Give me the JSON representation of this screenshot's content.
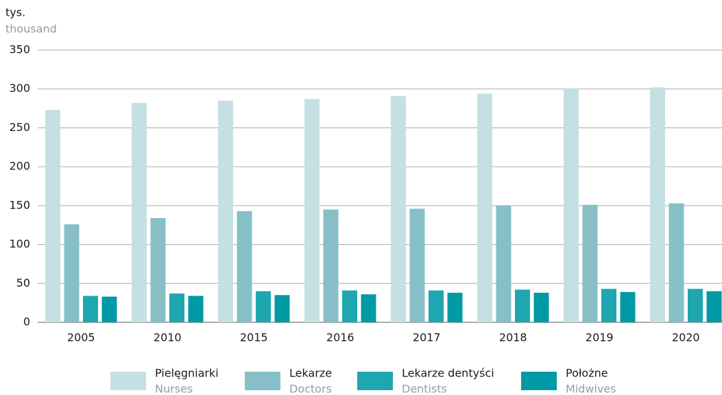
{
  "chart_data": {
    "type": "bar",
    "y_label": "tys.",
    "y_label_en": "thousand",
    "categories": [
      "2005",
      "2010",
      "2015",
      "2016",
      "2017",
      "2018",
      "2019",
      "2020"
    ],
    "series": [
      {
        "name": "Pielęgniarki",
        "name_en": "Nurses",
        "color": "#c5e0e3",
        "values": [
          273,
          282,
          285,
          287,
          291,
          294,
          300,
          302
        ]
      },
      {
        "name": "Lekarze",
        "name_en": "Doctors",
        "color": "#86c0c6",
        "values": [
          126,
          134,
          143,
          145,
          146,
          150,
          151,
          153
        ]
      },
      {
        "name": "Lekarze dentyści",
        "name_en": "Dentists",
        "color": "#1fa7b1",
        "values": [
          34,
          37,
          40,
          41,
          41,
          42,
          43,
          43
        ]
      },
      {
        "name": "Położne",
        "name_en": "Midwives",
        "color": "#009aa4",
        "values": [
          33,
          34,
          35,
          36,
          38,
          38,
          39,
          40
        ]
      }
    ],
    "ylim": [
      0,
      350
    ],
    "yticks": [
      0,
      50,
      100,
      150,
      200,
      250,
      300,
      350
    ],
    "grid": true,
    "legend": "bottom"
  }
}
